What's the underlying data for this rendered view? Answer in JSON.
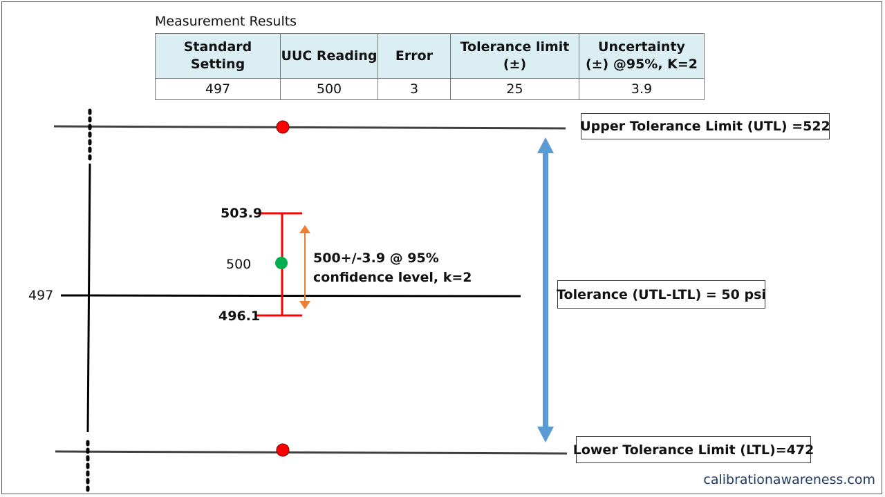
{
  "table": {
    "title": "Measurement Results",
    "headers": [
      "Standard Setting",
      "UUC Reading",
      "Error",
      "Tolerance limit (±)",
      "Uncertainty (±) @95%, K=2"
    ],
    "row": [
      "497",
      "500",
      "3",
      "25",
      "3.9"
    ]
  },
  "diagram": {
    "utl_label": "Upper Tolerance Limit (UTL) =522",
    "ltl_label": "Lower Tolerance Limit (LTL)=472",
    "tolerance_label": "Tolerance  (UTL-LTL) = 50 psi",
    "standard_value": "497",
    "uuc_value": "500",
    "upper_uncertainty": "503.9",
    "lower_uncertainty": "496.1",
    "uncertainty_note_line1": "500+/-3.9 @ 95%",
    "uncertainty_note_line2": "confidence level, k=2",
    "colors": {
      "limit_dot": "#ff0000",
      "uuc_dot": "#00b050",
      "error_bar": "#ff0000",
      "uncertainty_arrow": "#ed7d31",
      "tolerance_arrow": "#5b9bd5"
    }
  },
  "watermark": "calibrationawareness.com"
}
